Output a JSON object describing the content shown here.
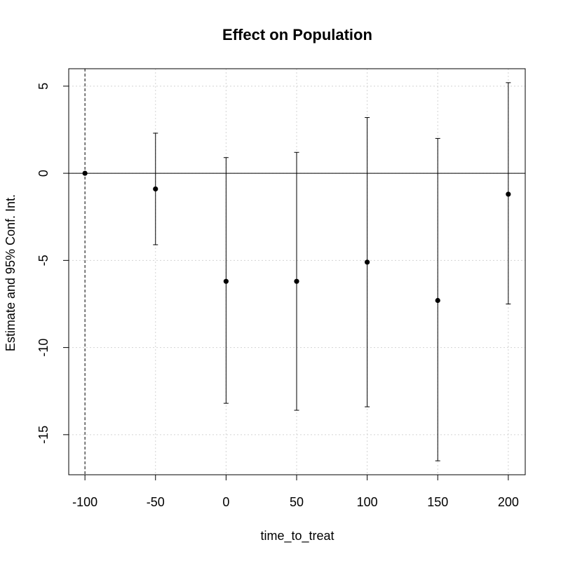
{
  "chart_data": {
    "type": "scatter",
    "title": "Effect on Population",
    "xlabel": "time_to_treat",
    "ylabel": "Estimate and 95% Conf. Int.",
    "xlim": [
      -111.5,
      212
    ],
    "ylim": [
      -17.3,
      6.0
    ],
    "x_ticks": [
      -100,
      -50,
      0,
      50,
      100,
      150,
      200
    ],
    "y_ticks": [
      -15,
      -10,
      -5,
      0,
      5
    ],
    "x_tick_labels": [
      "-100",
      "-50",
      "0",
      "50",
      "100",
      "150",
      "200"
    ],
    "y_tick_labels": [
      "-15",
      "-10",
      "-5",
      "0",
      "5"
    ],
    "grid": true,
    "reference_hline": 0,
    "reference_vline": -100,
    "series": [
      {
        "points": [
          {
            "x": -100,
            "estimate": 0.0,
            "ci_low": null,
            "ci_high": null
          },
          {
            "x": -50,
            "estimate": -0.9,
            "ci_low": -4.1,
            "ci_high": 2.3
          },
          {
            "x": 0,
            "estimate": -6.2,
            "ci_low": -13.2,
            "ci_high": 0.9
          },
          {
            "x": 50,
            "estimate": -6.2,
            "ci_low": -13.6,
            "ci_high": 1.2
          },
          {
            "x": 100,
            "estimate": -5.1,
            "ci_low": -13.4,
            "ci_high": 3.2
          },
          {
            "x": 150,
            "estimate": -7.3,
            "ci_low": -16.5,
            "ci_high": 2.0
          },
          {
            "x": 200,
            "estimate": -1.2,
            "ci_low": -7.5,
            "ci_high": 5.2
          }
        ]
      }
    ]
  }
}
